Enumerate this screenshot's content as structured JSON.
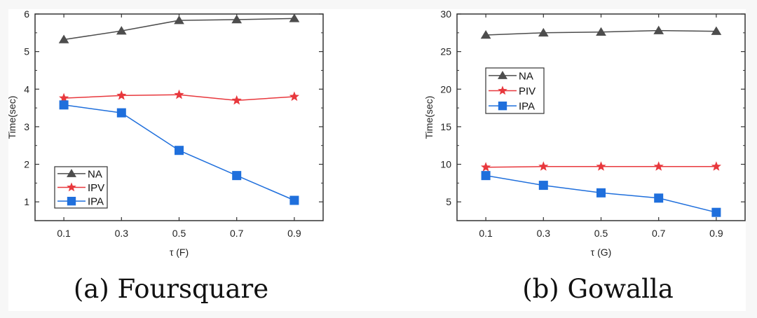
{
  "figure": {
    "captions": [
      "(a) Foursquare",
      "(b) Gowalla"
    ]
  },
  "chart_data": [
    {
      "type": "line",
      "title": "",
      "caption": "(a) Foursquare",
      "xlabel": "τ (F)",
      "ylabel": "Time(sec)",
      "x": [
        0.1,
        0.3,
        0.5,
        0.7,
        0.9
      ],
      "x_tick_labels": [
        "0.1",
        "0.3",
        "0.5",
        "0.7",
        "0.9"
      ],
      "xlim": [
        0.0,
        1.0
      ],
      "ylim": [
        0.5,
        6
      ],
      "y_ticks": [
        1,
        2,
        3,
        4,
        5,
        6
      ],
      "y_tick_labels": [
        "1",
        "2",
        "3",
        "4",
        "5",
        "6"
      ],
      "grid": false,
      "legend_position": "bottom-left",
      "series": [
        {
          "name": "NA",
          "marker": "triangle",
          "color": "#4d4d4d",
          "values": [
            5.32,
            5.55,
            5.83,
            5.85,
            5.88
          ]
        },
        {
          "name": "IPV",
          "marker": "star",
          "color": "#e8383d",
          "values": [
            3.76,
            3.83,
            3.85,
            3.7,
            3.8
          ]
        },
        {
          "name": "IPA",
          "marker": "square",
          "color": "#1f6fdc",
          "values": [
            3.58,
            3.37,
            2.37,
            1.7,
            1.04
          ]
        }
      ]
    },
    {
      "type": "line",
      "title": "",
      "caption": "(b) Gowalla",
      "xlabel": "τ (G)",
      "ylabel": "Time(sec)",
      "x": [
        0.1,
        0.3,
        0.5,
        0.7,
        0.9
      ],
      "x_tick_labels": [
        "0.1",
        "0.3",
        "0.5",
        "0.7",
        "0.9"
      ],
      "xlim": [
        0.0,
        1.0
      ],
      "ylim": [
        2.5,
        30
      ],
      "y_ticks": [
        5,
        10,
        15,
        20,
        25,
        30
      ],
      "y_tick_labels": [
        "5",
        "10",
        "15",
        "20",
        "25",
        "30"
      ],
      "grid": false,
      "legend_position": "upper-left",
      "series": [
        {
          "name": "NA",
          "marker": "triangle",
          "color": "#4d4d4d",
          "values": [
            27.2,
            27.5,
            27.6,
            27.8,
            27.7
          ]
        },
        {
          "name": "PIV",
          "marker": "star",
          "color": "#e8383d",
          "values": [
            9.6,
            9.7,
            9.7,
            9.7,
            9.7
          ]
        },
        {
          "name": "IPA",
          "marker": "square",
          "color": "#1f6fdc",
          "values": [
            8.5,
            7.2,
            6.2,
            5.5,
            3.6
          ]
        }
      ]
    }
  ]
}
